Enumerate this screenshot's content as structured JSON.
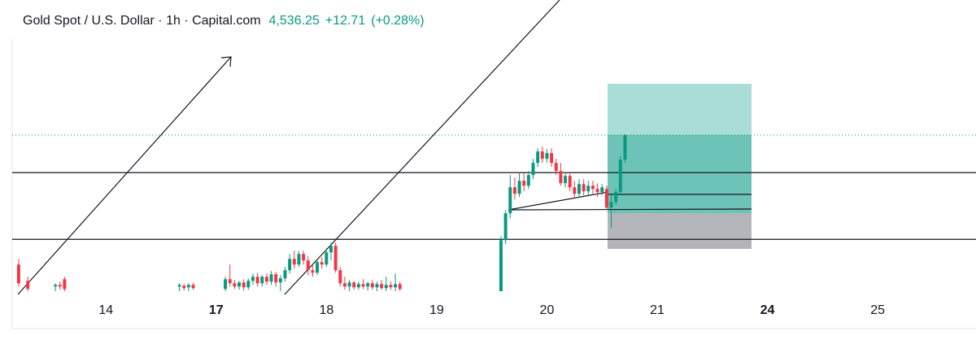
{
  "chart_data": {
    "type": "candlestick",
    "title": "Gold Spot / U.S. Dollar · 1h · Capital.com",
    "last_price": {
      "value": 4536.25,
      "label": "4,536.25"
    },
    "change": {
      "value": 12.71,
      "label": "+12.71"
    },
    "change_pct": {
      "value": 0.28,
      "label": "(+0.28%)"
    },
    "up_color": "#089981",
    "down_color": "#f23645",
    "x": [
      -19,
      -17,
      -11,
      -10,
      -9,
      16,
      17,
      18,
      19,
      26,
      27,
      28,
      29,
      30,
      31,
      32,
      33,
      34,
      35,
      36,
      37,
      38,
      39,
      40,
      41,
      42,
      43,
      44,
      45,
      46,
      47,
      48,
      49,
      50,
      51,
      52,
      53,
      54,
      55,
      56,
      57,
      58,
      59,
      60,
      61,
      62,
      63,
      64,
      86,
      87,
      88,
      89,
      90,
      91,
      92,
      93,
      94,
      95,
      96,
      97,
      98,
      99,
      100,
      101,
      102,
      103,
      104,
      105,
      106,
      107,
      108,
      109,
      110,
      111,
      112,
      113
    ],
    "open": [
      4377,
      4357,
      4350,
      4352,
      4359,
      4350,
      4351,
      4349,
      4352,
      4347,
      4359,
      4354,
      4350,
      4355,
      4349,
      4357,
      4362,
      4354,
      4362,
      4356,
      4365,
      4355,
      4360,
      4370,
      4384,
      4377,
      4390,
      4382,
      4370,
      4367,
      4380,
      4377,
      4392,
      4400,
      4370,
      4354,
      4350,
      4355,
      4349,
      4353,
      4350,
      4354,
      4349,
      4353,
      4348,
      4352,
      4349,
      4353,
      4344,
      4407,
      4440,
      4472,
      4464,
      4480,
      4474,
      4487,
      4502,
      4516,
      4507,
      4514,
      4502,
      4492,
      4477,
      4486,
      4472,
      4464,
      4476,
      4467,
      4474,
      4470,
      4466,
      4470,
      4447,
      4454,
      4466,
      4506
    ],
    "high": [
      4384,
      4362,
      4354,
      4356,
      4362,
      4354,
      4353,
      4354,
      4355,
      4362,
      4377,
      4358,
      4357,
      4359,
      4360,
      4366,
      4367,
      4364,
      4366,
      4369,
      4368,
      4364,
      4374,
      4390,
      4394,
      4394,
      4394,
      4387,
      4377,
      4384,
      4386,
      4397,
      4404,
      4404,
      4374,
      4362,
      4358,
      4357,
      4356,
      4359,
      4356,
      4358,
      4356,
      4358,
      4362,
      4356,
      4366,
      4356,
      4412,
      4444,
      4487,
      4484,
      4490,
      4490,
      4492,
      4507,
      4520,
      4522,
      4519,
      4520,
      4507,
      4502,
      4490,
      4490,
      4480,
      4482,
      4482,
      4480,
      4480,
      4477,
      4476,
      4474,
      4462,
      4470,
      4510,
      4537
    ],
    "low": [
      4350,
      4344,
      4344,
      4346,
      4344,
      4344,
      4345,
      4344,
      4346,
      4344,
      4350,
      4347,
      4346,
      4345,
      4346,
      4352,
      4350,
      4350,
      4352,
      4352,
      4350,
      4344,
      4356,
      4366,
      4372,
      4374,
      4377,
      4364,
      4362,
      4364,
      4372,
      4374,
      4382,
      4367,
      4350,
      4346,
      4344,
      4346,
      4346,
      4347,
      4345,
      4346,
      4344,
      4346,
      4344,
      4346,
      4344,
      4344,
      4344,
      4402,
      4434,
      4457,
      4460,
      4467,
      4470,
      4482,
      4497,
      4502,
      4502,
      4497,
      4487,
      4474,
      4472,
      4467,
      4460,
      4460,
      4462,
      4462,
      4464,
      4460,
      4462,
      4444,
      4422,
      4450,
      4462,
      4502
    ],
    "close": [
      4354,
      4347,
      4352,
      4350,
      4347,
      4352,
      4348,
      4352,
      4348,
      4359,
      4354,
      4350,
      4355,
      4349,
      4357,
      4362,
      4354,
      4362,
      4356,
      4365,
      4355,
      4360,
      4370,
      4384,
      4377,
      4390,
      4382,
      4370,
      4367,
      4380,
      4377,
      4392,
      4400,
      4370,
      4354,
      4350,
      4355,
      4349,
      4353,
      4350,
      4354,
      4349,
      4353,
      4348,
      4352,
      4349,
      4353,
      4347,
      4407,
      4440,
      4472,
      4464,
      4480,
      4474,
      4487,
      4502,
      4516,
      4507,
      4514,
      4502,
      4492,
      4477,
      4486,
      4472,
      4464,
      4476,
      4467,
      4474,
      4470,
      4466,
      4472,
      4447,
      4454,
      4466,
      4506,
      4536.25
    ],
    "levels": [
      4490,
      4408
    ],
    "xlim": [
      -20.4,
      189.4
    ],
    "ylim": [
      4344.25,
      4702.25
    ],
    "xticks": [
      {
        "value": 0,
        "label": "14"
      },
      {
        "value": 24,
        "label": "17",
        "bold": true
      },
      {
        "value": 48,
        "label": "18"
      },
      {
        "value": 72,
        "label": "19"
      },
      {
        "value": 96,
        "label": "20"
      },
      {
        "value": 120,
        "label": "21"
      },
      {
        "value": 144,
        "label": "24",
        "bold": true
      },
      {
        "value": 168,
        "label": "25"
      }
    ]
  }
}
